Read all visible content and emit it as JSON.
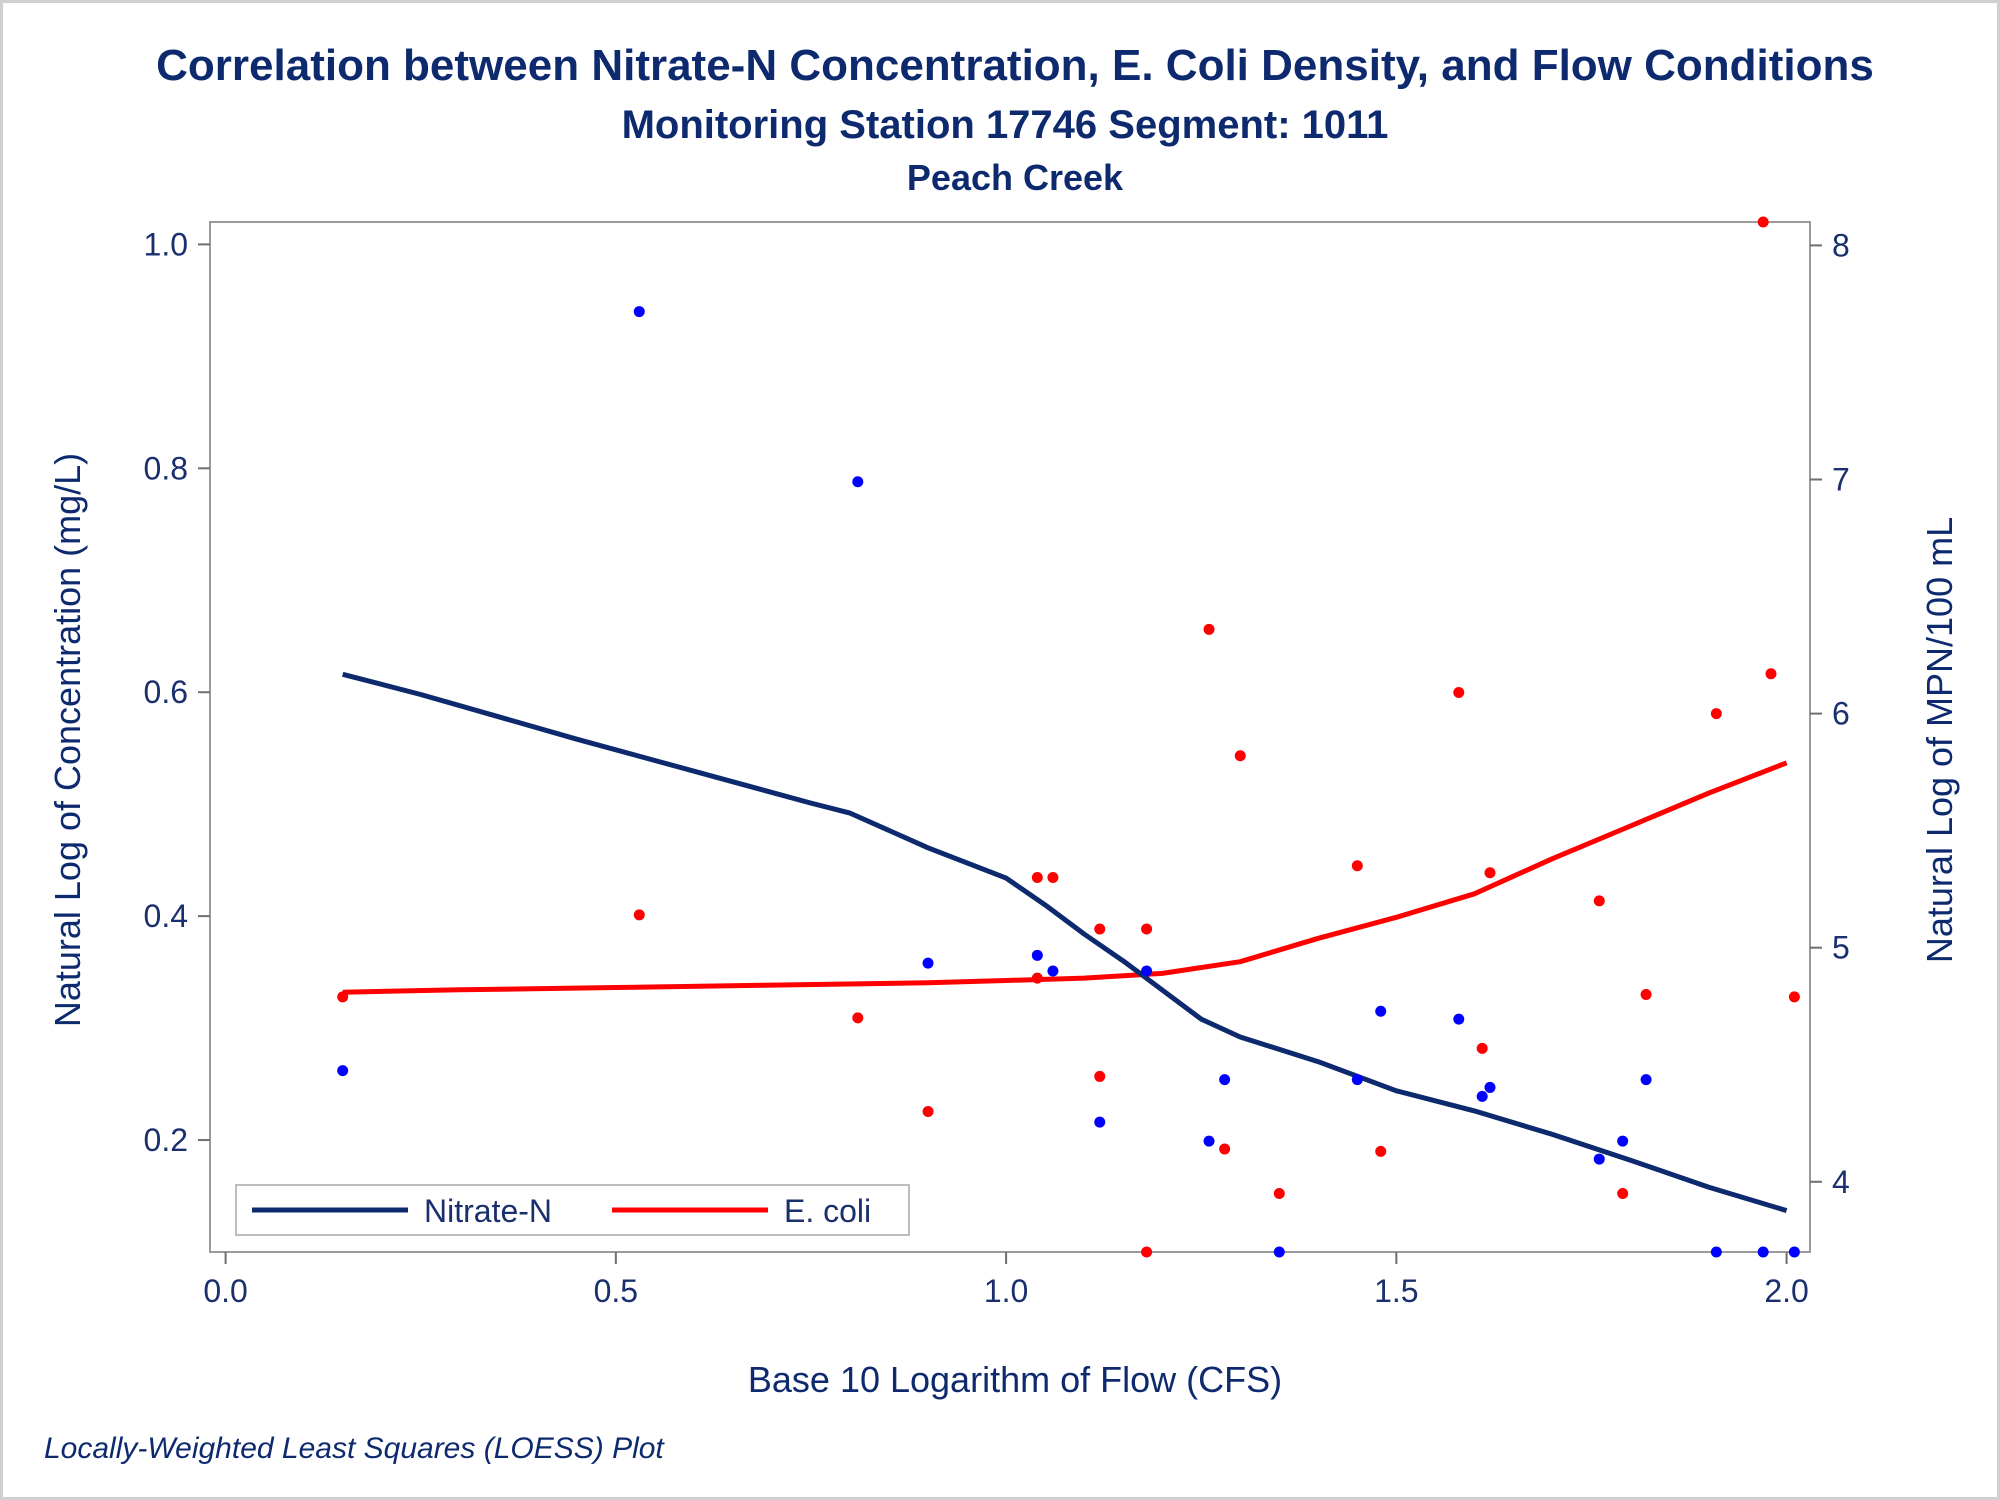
{
  "title": "Correlation between Nitrate-N Concentration, E. Coli Density, and Flow Conditions",
  "subtitle": "Monitoring Station 17746 Segment: 1011",
  "subtitle2": "Peach Creek",
  "footnote": "Locally-Weighted Least Squares (LOESS) Plot",
  "chart_data": {
    "type": "scatter",
    "xlabel": "Base 10 Logarithm of Flow (CFS)",
    "ylabel_left": "Natural Log of Concentration (mg/L)",
    "ylabel_right": "Natural Log of MPN/100 mL",
    "xlim": [
      -0.02,
      2.03
    ],
    "ylim_left": [
      0.1,
      1.02
    ],
    "ylim_right": [
      3.7,
      8.1
    ],
    "x_ticks": [
      "0.0",
      "0.5",
      "1.0",
      "1.5",
      "2.0"
    ],
    "y_left_ticks": [
      "0.2",
      "0.4",
      "0.6",
      "0.8",
      "1.0"
    ],
    "y_right_ticks": [
      "4",
      "5",
      "6",
      "7",
      "8"
    ],
    "legend_position": "bottom-left",
    "colors": {
      "nitrate": "#0000ff",
      "nitrate_line": "#0e2a6e",
      "ecoli": "#ff0000"
    },
    "series": [
      {
        "name": "Nitrate-N",
        "axis": "left",
        "points": [
          [
            0.15,
            0.262
          ],
          [
            0.53,
            0.94
          ],
          [
            0.81,
            0.788
          ],
          [
            0.9,
            0.358
          ],
          [
            1.04,
            0.365
          ],
          [
            1.06,
            0.351
          ],
          [
            1.12,
            0.216
          ],
          [
            1.18,
            0.351
          ],
          [
            1.26,
            0.199
          ],
          [
            1.28,
            0.254
          ],
          [
            1.35,
            0.1
          ],
          [
            1.45,
            0.254
          ],
          [
            1.48,
            0.315
          ],
          [
            1.58,
            0.308
          ],
          [
            1.61,
            0.239
          ],
          [
            1.62,
            0.247
          ],
          [
            1.76,
            0.183
          ],
          [
            1.79,
            0.199
          ],
          [
            1.82,
            0.254
          ],
          [
            1.91,
            0.1
          ],
          [
            1.97,
            0.1
          ],
          [
            2.01,
            0.1
          ]
        ],
        "loess": [
          [
            0.15,
            0.616
          ],
          [
            0.25,
            0.598
          ],
          [
            0.35,
            0.578
          ],
          [
            0.45,
            0.558
          ],
          [
            0.55,
            0.539
          ],
          [
            0.65,
            0.52
          ],
          [
            0.75,
            0.501
          ],
          [
            0.8,
            0.492
          ],
          [
            0.9,
            0.461
          ],
          [
            1.0,
            0.434
          ],
          [
            1.05,
            0.41
          ],
          [
            1.1,
            0.384
          ],
          [
            1.15,
            0.36
          ],
          [
            1.2,
            0.334
          ],
          [
            1.25,
            0.308
          ],
          [
            1.3,
            0.292
          ],
          [
            1.4,
            0.27
          ],
          [
            1.5,
            0.244
          ],
          [
            1.6,
            0.226
          ],
          [
            1.7,
            0.205
          ],
          [
            1.8,
            0.182
          ],
          [
            1.9,
            0.158
          ],
          [
            2.0,
            0.137
          ]
        ]
      },
      {
        "name": "E. coli",
        "axis": "right",
        "points": [
          [
            0.15,
            4.79
          ],
          [
            0.53,
            5.14
          ],
          [
            0.81,
            4.7
          ],
          [
            0.9,
            4.3
          ],
          [
            1.04,
            4.87
          ],
          [
            1.04,
            5.3
          ],
          [
            1.06,
            5.3
          ],
          [
            1.12,
            4.45
          ],
          [
            1.12,
            5.08
          ],
          [
            1.18,
            5.08
          ],
          [
            1.18,
            3.7
          ],
          [
            1.26,
            6.36
          ],
          [
            1.28,
            4.14
          ],
          [
            1.3,
            5.82
          ],
          [
            1.35,
            3.95
          ],
          [
            1.45,
            5.35
          ],
          [
            1.48,
            4.13
          ],
          [
            1.58,
            6.09
          ],
          [
            1.61,
            4.57
          ],
          [
            1.62,
            5.32
          ],
          [
            1.76,
            5.2
          ],
          [
            1.79,
            3.95
          ],
          [
            1.82,
            4.8
          ],
          [
            1.91,
            6.0
          ],
          [
            1.97,
            8.1
          ],
          [
            1.98,
            6.17
          ],
          [
            2.01,
            4.79
          ]
        ],
        "loess": [
          [
            0.15,
            4.81
          ],
          [
            0.3,
            4.82
          ],
          [
            0.5,
            4.83
          ],
          [
            0.7,
            4.84
          ],
          [
            0.9,
            4.85
          ],
          [
            1.0,
            4.86
          ],
          [
            1.1,
            4.87
          ],
          [
            1.2,
            4.89
          ],
          [
            1.3,
            4.94
          ],
          [
            1.4,
            5.04
          ],
          [
            1.5,
            5.13
          ],
          [
            1.6,
            5.23
          ],
          [
            1.7,
            5.38
          ],
          [
            1.8,
            5.52
          ],
          [
            1.9,
            5.66
          ],
          [
            2.0,
            5.79
          ]
        ]
      }
    ]
  }
}
